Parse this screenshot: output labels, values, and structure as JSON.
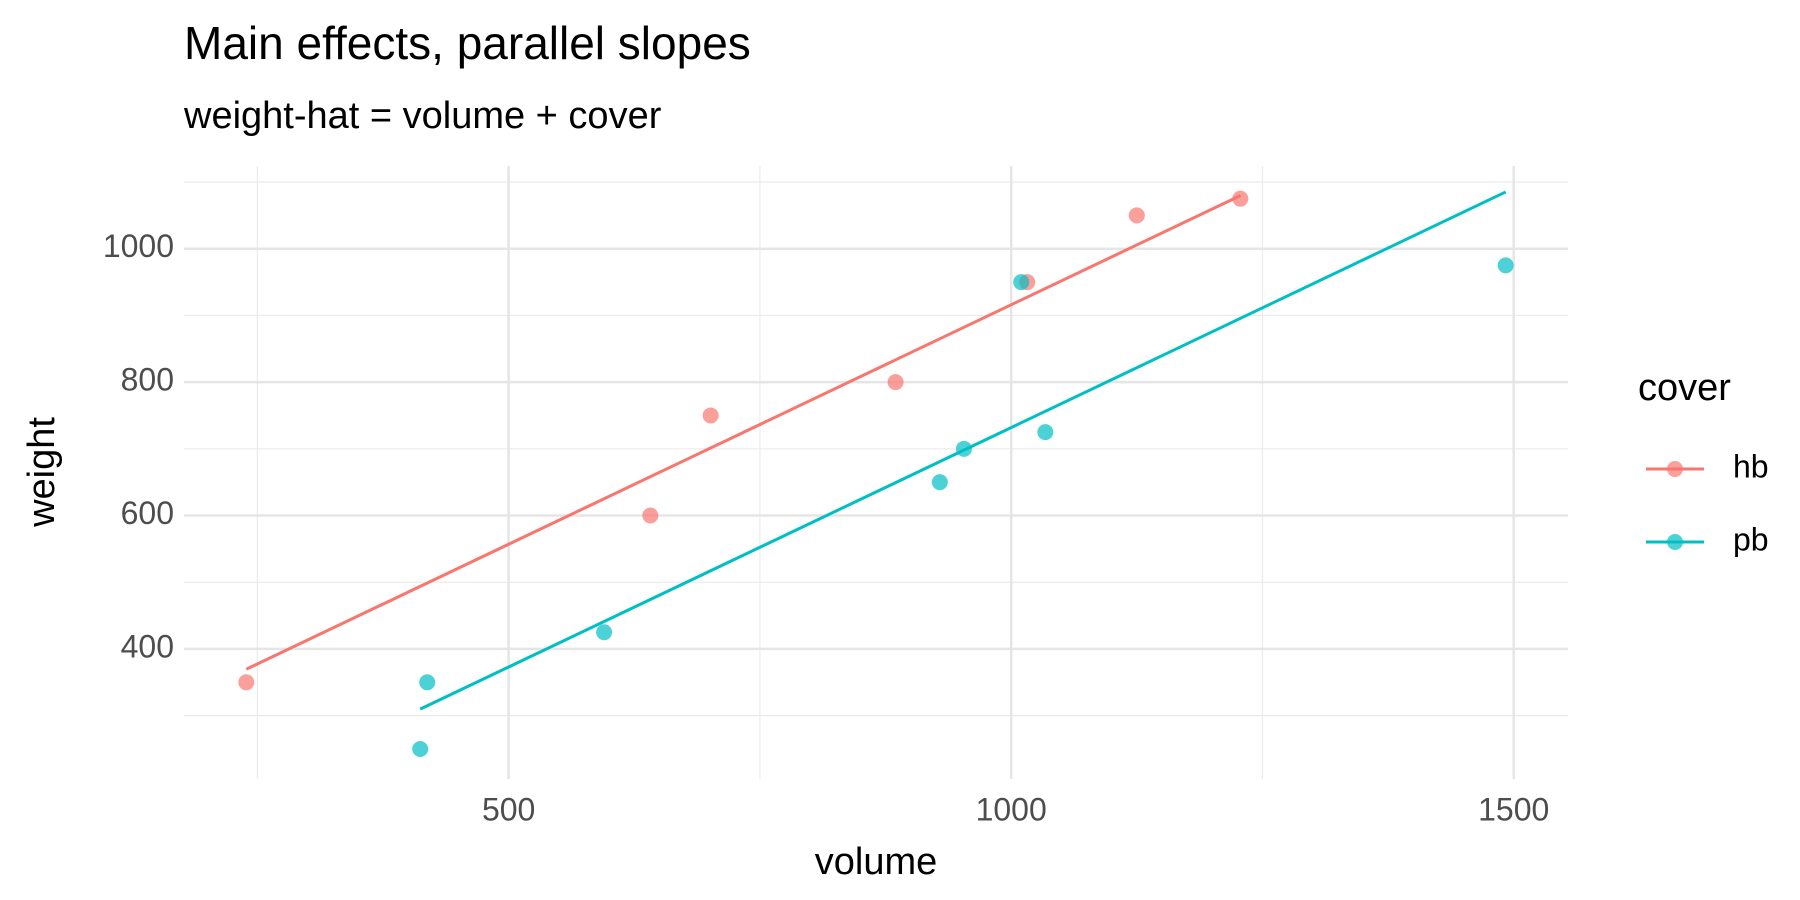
{
  "chart_data": {
    "type": "scatter",
    "title": "Main effects, parallel slopes",
    "subtitle": "weight-hat = volume + cover",
    "x_label": "volume",
    "y_label": "weight",
    "legend_title": "cover",
    "legend_position": "right",
    "xlim": [
      177,
      1554
    ],
    "ylim": [
      205,
      1124
    ],
    "xticks": [
      500,
      1000,
      1500
    ],
    "yticks": [
      400,
      600,
      800,
      1000
    ],
    "x_minor_ticks": [
      250,
      750,
      1250
    ],
    "y_minor_ticks": [
      300,
      500,
      700,
      900,
      1100
    ],
    "grid": true,
    "series": [
      {
        "name": "hb",
        "color": "#F8766D",
        "x": [
          885,
          1016,
          1125,
          239,
          701,
          641,
          1228
        ],
        "values": [
          800,
          950,
          1050,
          350,
          750,
          600,
          1075
        ],
        "fit": {
          "x": [
            239,
            1228
          ],
          "y": [
            369.6,
            1079.6
          ]
        }
      },
      {
        "name": "pb",
        "color": "#00BFC4",
        "x": [
          412,
          953,
          929,
          1492,
          419,
          1010,
          595,
          1034
        ],
        "values": [
          250,
          700,
          650,
          975,
          350,
          950,
          425,
          725
        ],
        "fit": {
          "x": [
            412,
            1492
          ],
          "y": [
            309.7,
            1085.1
          ]
        }
      }
    ]
  }
}
